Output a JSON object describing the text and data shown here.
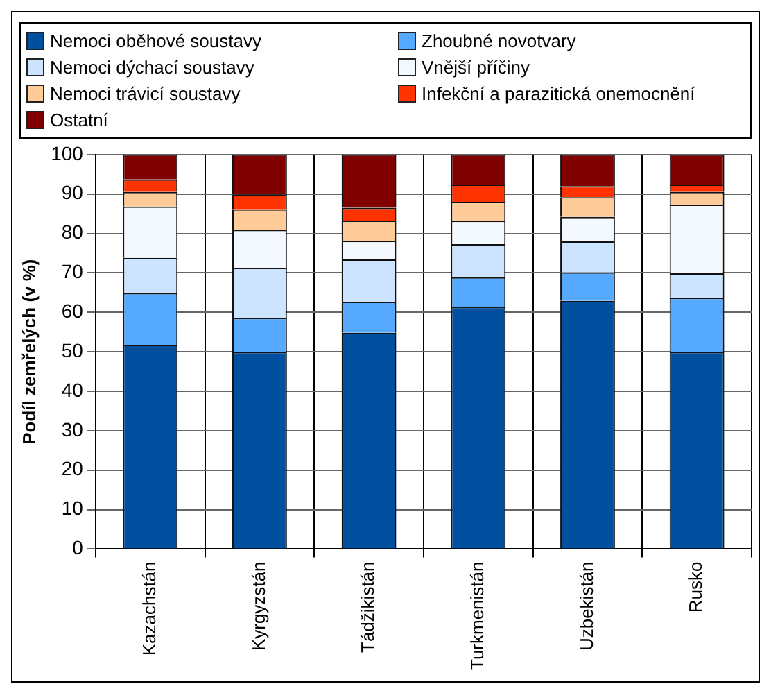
{
  "chart_data": {
    "type": "bar",
    "stacked": true,
    "ylabel": "Podíl zemřelých (v %)",
    "categories": [
      "Kazachstán",
      "Kyrgyzstán",
      "Tádžikistán",
      "Turkmenistán",
      "Uzbekistán",
      "Rusko"
    ],
    "ylim": [
      0,
      100
    ],
    "yticks": [
      0,
      10,
      20,
      30,
      40,
      50,
      60,
      70,
      80,
      90,
      100
    ],
    "grid": true,
    "legend": "top",
    "series": [
      {
        "name": "Nemoci oběhové soustavy",
        "color": "#00509f",
        "values": [
          51.8,
          50,
          54.8,
          61.4,
          62.9,
          50
        ]
      },
      {
        "name": "Zhoubné novotvary",
        "color": "#55aaff",
        "values": [
          13.1,
          8.6,
          7.9,
          7.5,
          7.2,
          13.7
        ]
      },
      {
        "name": "Nemoci dýchací soustavy",
        "color": "#cce4ff",
        "values": [
          8.9,
          12.7,
          10.7,
          8.4,
          7.9,
          6.2
        ]
      },
      {
        "name": "Vnější příčiny",
        "color": "#f4f9ff",
        "values": [
          13,
          9.6,
          4.7,
          5.9,
          6.2,
          17.4
        ]
      },
      {
        "name": "Nemoci trávicí soustavy",
        "color": "#ffcc99",
        "values": [
          3.7,
          5.2,
          5.1,
          4.8,
          5,
          3.2
        ]
      },
      {
        "name": "Infekční a parazitická onemocnění",
        "color": "#ff3300",
        "values": [
          3.2,
          3.8,
          3.3,
          4.4,
          2.8,
          1.9
        ]
      },
      {
        "name": "Ostatní",
        "color": "#800000",
        "values": [
          6.3,
          10.1,
          13.5,
          7.6,
          8,
          7.6
        ]
      }
    ]
  }
}
